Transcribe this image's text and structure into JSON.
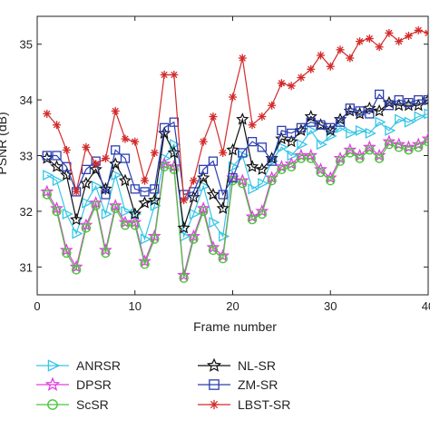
{
  "chart_data": {
    "type": "line",
    "title": "",
    "xlabel": "Frame number",
    "ylabel": "PSNR (dB)",
    "xlim": [
      0,
      40
    ],
    "ylim": [
      30.5,
      35.5
    ],
    "xticks": [
      "0",
      "10",
      "20",
      "30",
      "40"
    ],
    "yticks": [
      "31",
      "32",
      "33",
      "34",
      "35"
    ],
    "grid": false,
    "legend_position": "bottom",
    "x": [
      1,
      2,
      3,
      4,
      5,
      6,
      7,
      8,
      9,
      10,
      11,
      12,
      13,
      14,
      15,
      16,
      17,
      18,
      19,
      20,
      21,
      22,
      23,
      24,
      25,
      26,
      27,
      28,
      29,
      30,
      31,
      32,
      33,
      34,
      35,
      36,
      37,
      38,
      39,
      40
    ],
    "series": [
      {
        "name": "ANRSR",
        "color": "#36c5e6",
        "marker": "triangle-right",
        "values": [
          32.65,
          32.55,
          31.95,
          31.6,
          32.15,
          32.45,
          31.95,
          32.65,
          32.0,
          31.95,
          31.5,
          32.1,
          32.95,
          33.2,
          31.55,
          31.95,
          32.45,
          31.8,
          31.55,
          32.8,
          33.0,
          32.4,
          32.5,
          32.9,
          33.15,
          33.0,
          33.2,
          33.45,
          33.2,
          33.35,
          33.5,
          33.4,
          33.45,
          33.4,
          33.6,
          33.45,
          33.65,
          33.6,
          33.7,
          33.75
        ]
      },
      {
        "name": "DPSR",
        "color": "#e040e0",
        "marker": "star",
        "values": [
          32.35,
          32.05,
          31.3,
          31.0,
          31.75,
          32.15,
          31.3,
          32.1,
          31.8,
          31.8,
          31.1,
          31.55,
          32.85,
          32.8,
          30.85,
          31.55,
          32.05,
          31.35,
          31.2,
          32.6,
          32.55,
          31.9,
          32.0,
          32.6,
          32.8,
          32.85,
          33.0,
          33.0,
          32.75,
          32.6,
          32.95,
          33.1,
          33.0,
          33.15,
          33.0,
          33.25,
          33.2,
          33.15,
          33.2,
          33.3
        ]
      },
      {
        "name": "ScSR",
        "color": "#4ac43c",
        "marker": "circle",
        "values": [
          32.3,
          32.0,
          31.25,
          30.95,
          31.7,
          32.1,
          31.25,
          32.05,
          31.75,
          31.75,
          31.05,
          31.5,
          32.8,
          32.75,
          30.8,
          31.5,
          32.0,
          31.3,
          31.15,
          32.55,
          32.5,
          31.85,
          31.95,
          32.55,
          32.75,
          32.8,
          32.95,
          32.95,
          32.7,
          32.55,
          32.9,
          33.05,
          32.95,
          33.1,
          32.95,
          33.2,
          33.15,
          33.1,
          33.15,
          33.25
        ]
      },
      {
        "name": "NL-SR",
        "color": "#111111",
        "marker": "star-hollow",
        "values": [
          32.95,
          32.8,
          32.65,
          31.85,
          32.5,
          32.75,
          32.4,
          32.85,
          32.55,
          31.95,
          32.15,
          32.2,
          33.4,
          33.05,
          31.7,
          32.25,
          32.6,
          32.3,
          32.05,
          33.1,
          33.65,
          32.8,
          32.75,
          32.95,
          33.3,
          33.25,
          33.45,
          33.7,
          33.55,
          33.45,
          33.65,
          33.8,
          33.75,
          33.85,
          33.8,
          33.95,
          33.9,
          33.9,
          33.9,
          34.0
        ]
      },
      {
        "name": "ZM-SR",
        "color": "#2c3fb0",
        "marker": "square",
        "values": [
          33.0,
          33.0,
          32.8,
          32.35,
          32.75,
          32.9,
          32.3,
          33.1,
          32.95,
          32.4,
          32.35,
          32.4,
          33.5,
          33.6,
          32.3,
          32.35,
          32.75,
          32.9,
          32.3,
          32.6,
          33.05,
          33.25,
          33.15,
          32.9,
          33.45,
          33.4,
          33.5,
          33.6,
          33.55,
          33.5,
          33.6,
          33.85,
          33.8,
          33.75,
          34.1,
          33.9,
          34.0,
          33.95,
          34.0,
          34.0
        ]
      },
      {
        "name": "LBST-SR",
        "color": "#d42a2a",
        "marker": "asterisk",
        "values": [
          33.75,
          33.55,
          33.1,
          32.35,
          33.15,
          32.85,
          32.95,
          33.8,
          33.3,
          33.25,
          32.55,
          33.05,
          34.45,
          34.45,
          32.2,
          32.55,
          33.25,
          33.7,
          33.05,
          34.05,
          34.75,
          33.55,
          33.7,
          33.9,
          34.3,
          34.25,
          34.4,
          34.55,
          34.8,
          34.6,
          34.9,
          34.75,
          35.05,
          35.1,
          34.95,
          35.2,
          35.05,
          35.15,
          35.25,
          35.2
        ]
      }
    ]
  }
}
